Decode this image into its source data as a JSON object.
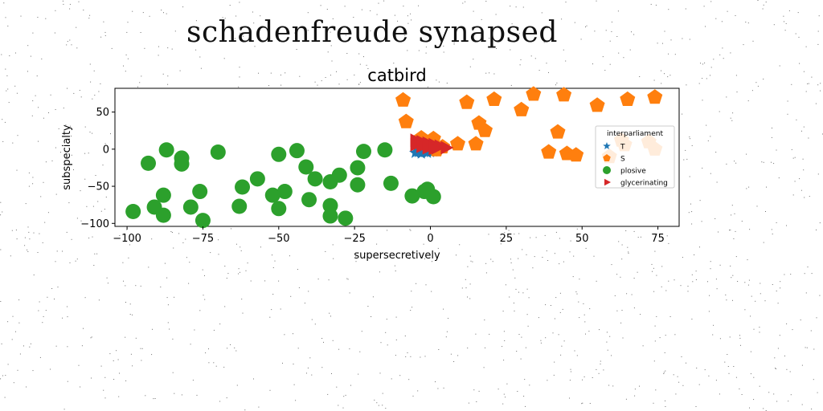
{
  "figure": {
    "suptitle": "schadenfreude synapsed"
  },
  "chart_data": {
    "type": "scatter",
    "title": "catbird",
    "xlabel": "supersecretively",
    "ylabel": "subspecialty",
    "xlim": [
      -104,
      82
    ],
    "ylim": [
      -104,
      82
    ],
    "xticks": [
      -100,
      -75,
      -50,
      -25,
      0,
      25,
      50,
      75
    ],
    "yticks": [
      -100,
      -50,
      0,
      50
    ],
    "grid": false,
    "legend": {
      "title": "interparliament",
      "position": "right"
    },
    "series": [
      {
        "name": "T",
        "marker": "star",
        "color": "#1f77b4",
        "points": [
          [
            -4,
            -2
          ],
          [
            -3,
            -4
          ],
          [
            -1,
            -3
          ],
          [
            -2,
            -1
          ],
          [
            -5,
            -5
          ],
          [
            0,
            -2
          ],
          [
            -3,
            -6
          ],
          [
            -1,
            -5
          ],
          [
            1,
            -3
          ],
          [
            -4,
            -4
          ],
          [
            -2,
            -3
          ],
          [
            0,
            -4
          ]
        ]
      },
      {
        "name": "S",
        "marker": "pentagon",
        "color": "#ff7f0e",
        "points": [
          [
            -9,
            66
          ],
          [
            -8,
            37
          ],
          [
            12,
            63
          ],
          [
            21,
            67
          ],
          [
            30,
            53
          ],
          [
            34,
            74
          ],
          [
            44,
            73
          ],
          [
            55,
            59
          ],
          [
            65,
            67
          ],
          [
            74,
            70
          ],
          [
            16,
            35
          ],
          [
            18,
            25
          ],
          [
            9,
            7
          ],
          [
            15,
            7
          ],
          [
            42,
            23
          ],
          [
            39,
            -4
          ],
          [
            45,
            -6
          ],
          [
            48,
            -8
          ],
          [
            -3,
            15
          ],
          [
            1,
            14
          ],
          [
            4,
            3
          ],
          [
            2,
            -1
          ],
          [
            59,
            -10
          ],
          [
            63,
            12
          ],
          [
            72,
            10
          ],
          [
            74,
            0
          ],
          [
            64,
            6
          ]
        ]
      },
      {
        "name": "plosive",
        "marker": "circle",
        "color": "#2ca02c",
        "points": [
          [
            -87,
            -1
          ],
          [
            -93,
            -19
          ],
          [
            -82,
            -12
          ],
          [
            -82,
            -20
          ],
          [
            -70,
            -4
          ],
          [
            -50,
            -7
          ],
          [
            -44,
            -2
          ],
          [
            -41,
            -24
          ],
          [
            -38,
            -40
          ],
          [
            -30,
            -35
          ],
          [
            -33,
            -44
          ],
          [
            -22,
            -3
          ],
          [
            -15,
            -1
          ],
          [
            -24,
            -25
          ],
          [
            -24,
            -48
          ],
          [
            -13,
            -46
          ],
          [
            -6,
            -63
          ],
          [
            -2,
            -57
          ],
          [
            -1,
            -54
          ],
          [
            1,
            -64
          ],
          [
            -57,
            -40
          ],
          [
            -52,
            -62
          ],
          [
            -48,
            -57
          ],
          [
            -50,
            -80
          ],
          [
            -40,
            -68
          ],
          [
            -33,
            -76
          ],
          [
            -33,
            -90
          ],
          [
            -28,
            -93
          ],
          [
            -62,
            -51
          ],
          [
            -63,
            -77
          ],
          [
            -76,
            -57
          ],
          [
            -79,
            -78
          ],
          [
            -88,
            -62
          ],
          [
            -91,
            -78
          ],
          [
            -88,
            -89
          ],
          [
            -98,
            -84
          ],
          [
            -75,
            -96
          ]
        ]
      },
      {
        "name": "glycerinating",
        "marker": "triangle-right",
        "color": "#d62728",
        "points": [
          [
            -5,
            12
          ],
          [
            -3,
            10
          ],
          [
            -1,
            8
          ],
          [
            1,
            6
          ],
          [
            3,
            4
          ],
          [
            5,
            2
          ],
          [
            -4,
            8
          ],
          [
            -2,
            6
          ],
          [
            0,
            4
          ],
          [
            2,
            2
          ],
          [
            -5,
            6
          ],
          [
            -3,
            4
          ],
          [
            -1,
            2
          ],
          [
            1,
            1
          ]
        ]
      }
    ]
  }
}
